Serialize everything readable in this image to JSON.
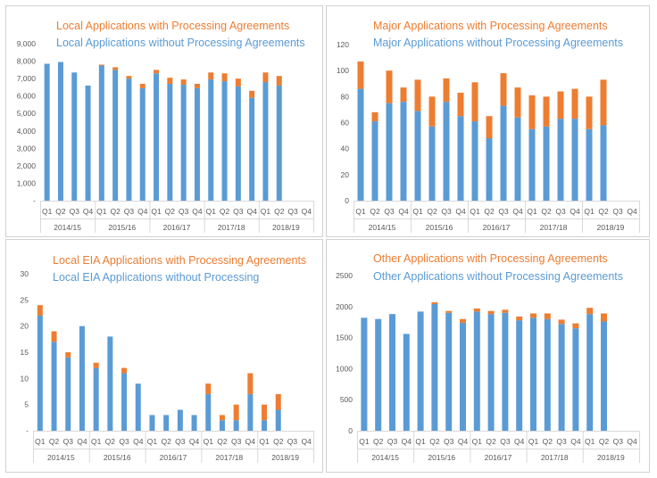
{
  "colors": {
    "with": "#ED7D31",
    "without": "#5B9BD5",
    "axis": "#D9D9D9",
    "text": "#595959"
  },
  "chart_data": [
    {
      "type": "bar",
      "stacked": true,
      "title_with": "Local Applications with Processing Agreements",
      "title_without": "Local Applications without Processing Agreements",
      "quarters": [
        "Q1",
        "Q2",
        "Q3",
        "Q4",
        "Q1",
        "Q2",
        "Q3",
        "Q4",
        "Q1",
        "Q2",
        "Q3",
        "Q4",
        "Q1",
        "Q2",
        "Q3",
        "Q4",
        "Q1",
        "Q2",
        "Q3",
        "Q4"
      ],
      "years": [
        "2014/15",
        "2015/16",
        "2016/17",
        "2017/18",
        "2018/19"
      ],
      "ylim": [
        0,
        9000
      ],
      "yticks": [
        "-",
        "1,000",
        "2,000",
        "3,000",
        "4,000",
        "5,000",
        "6,000",
        "7,000",
        "8,000",
        "9,000"
      ],
      "series": [
        {
          "name": "Local Applications without Processing Agreements",
          "values": [
            7850,
            7950,
            7350,
            6600,
            7750,
            7500,
            7000,
            6450,
            7300,
            6700,
            6650,
            6450,
            6950,
            6850,
            6550,
            5900,
            6800,
            6600,
            null,
            null
          ]
        },
        {
          "name": "Local Applications with Processing Agreements",
          "values": [
            0,
            0,
            0,
            0,
            50,
            150,
            150,
            250,
            200,
            350,
            300,
            250,
            400,
            450,
            450,
            400,
            550,
            550,
            null,
            null
          ]
        }
      ]
    },
    {
      "type": "bar",
      "stacked": true,
      "title_with": "Major Applications with Processing Agreements",
      "title_without": "Major Applications without Processing Agreements",
      "quarters": [
        "Q1",
        "Q2",
        "Q3",
        "Q4",
        "Q1",
        "Q2",
        "Q3",
        "Q4",
        "Q1",
        "Q2",
        "Q3",
        "Q4",
        "Q1",
        "Q2",
        "Q3",
        "Q4",
        "Q1",
        "Q2",
        "Q3",
        "Q4"
      ],
      "years": [
        "2014/15",
        "2015/16",
        "2016/17",
        "2017/18",
        "2018/19"
      ],
      "ylim": [
        0,
        120
      ],
      "yticks": [
        "0",
        "20",
        "40",
        "60",
        "80",
        "100",
        "120"
      ],
      "series": [
        {
          "name": "Major Applications without Processing Agreements",
          "values": [
            86,
            61,
            75,
            76,
            69,
            57,
            76,
            65,
            61,
            48,
            73,
            64,
            55,
            57,
            63,
            63,
            55,
            58,
            null,
            null
          ]
        },
        {
          "name": "Major Applications with Processing Agreements",
          "values": [
            21,
            7,
            25,
            11,
            24,
            23,
            18,
            18,
            30,
            17,
            25,
            23,
            26,
            23,
            21,
            23,
            25,
            35,
            null,
            null
          ]
        }
      ]
    },
    {
      "type": "bar",
      "stacked": true,
      "title_with": "Local EIA Applications with Processing Agreements",
      "title_without": "Local EIA Applications without Processing",
      "quarters": [
        "Q1",
        "Q2",
        "Q3",
        "Q4",
        "Q1",
        "Q2",
        "Q3",
        "Q4",
        "Q1",
        "Q2",
        "Q3",
        "Q4",
        "Q1",
        "Q2",
        "Q3",
        "Q4",
        "Q1",
        "Q2",
        "Q3",
        "Q4"
      ],
      "years": [
        "2014/15",
        "2015/16",
        "2016/17",
        "2017/18",
        "2018/19"
      ],
      "ylim": [
        0,
        30
      ],
      "yticks": [
        "-",
        "5",
        "10",
        "15",
        "20",
        "25",
        "30"
      ],
      "series": [
        {
          "name": "Local EIA Applications without Processing",
          "values": [
            22,
            17,
            14,
            20,
            12,
            18,
            11,
            9,
            3,
            3,
            4,
            3,
            7,
            2,
            2,
            7,
            2,
            4,
            null,
            null
          ]
        },
        {
          "name": "Local EIA Applications with Processing Agreements",
          "values": [
            2,
            2,
            1,
            0,
            1,
            0,
            1,
            0,
            0,
            0,
            0,
            0,
            2,
            1,
            3,
            4,
            3,
            3,
            null,
            null
          ]
        }
      ]
    },
    {
      "type": "bar",
      "stacked": true,
      "title_with": "Other Applications with Processing Agreements",
      "title_without": "Other Applications without Processing Agreements",
      "quarters": [
        "Q1",
        "Q2",
        "Q3",
        "Q4",
        "Q1",
        "Q2",
        "Q3",
        "Q4",
        "Q1",
        "Q2",
        "Q3",
        "Q4",
        "Q1",
        "Q2",
        "Q3",
        "Q4",
        "Q1",
        "Q2",
        "Q3",
        "Q4"
      ],
      "years": [
        "2014/15",
        "2015/16",
        "2016/17",
        "2017/18",
        "2018/19"
      ],
      "ylim": [
        0,
        2500
      ],
      "yticks": [
        "0",
        "500",
        "1000",
        "1500",
        "2000",
        "2500"
      ],
      "series": [
        {
          "name": "Other Applications without Processing Agreements",
          "values": [
            1820,
            1800,
            1880,
            1560,
            1920,
            2040,
            1900,
            1740,
            1920,
            1880,
            1900,
            1780,
            1820,
            1800,
            1720,
            1650,
            1880,
            1760,
            null,
            null
          ]
        },
        {
          "name": "Other Applications with Processing Agreements",
          "values": [
            0,
            0,
            0,
            0,
            0,
            30,
            30,
            60,
            50,
            50,
            50,
            60,
            70,
            90,
            70,
            80,
            100,
            130,
            null,
            null
          ]
        }
      ]
    }
  ]
}
